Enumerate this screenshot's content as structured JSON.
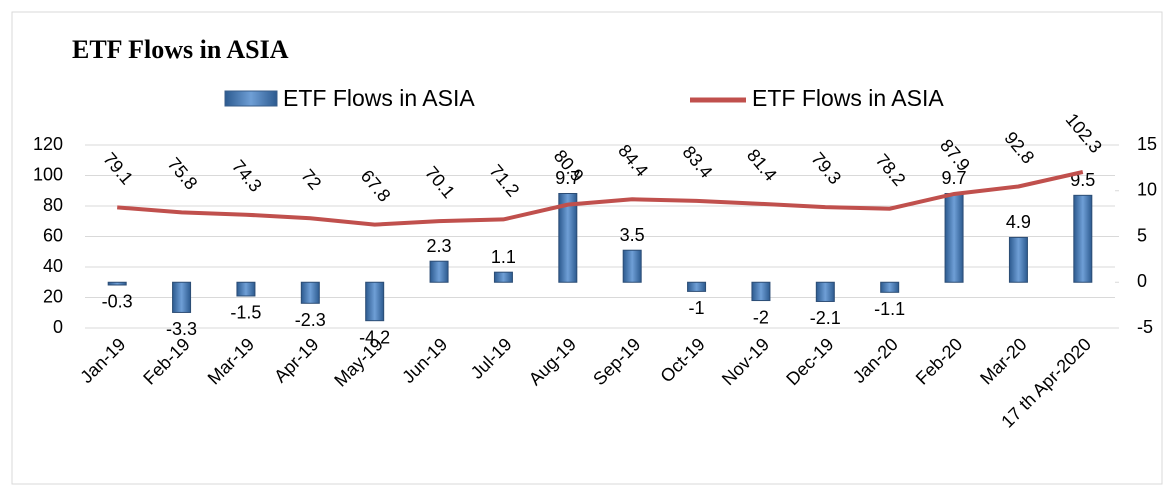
{
  "chart_data": {
    "type": "bar_line",
    "title": "ETF Flows in ASIA",
    "categories": [
      "Jan-19",
      "Feb-19",
      "Mar-19",
      "Apr-19",
      "May-19",
      "Jun-19",
      "Jul-19",
      "Aug-19",
      "Sep-19",
      "Oct-19",
      "Nov-19",
      "Dec-19",
      "Jan-20",
      "Feb-20",
      "Mar-20",
      "17 th Apr-2020"
    ],
    "series": [
      {
        "name": "ETF Flows in ASIA",
        "type": "bar",
        "axis": "y2",
        "color": "#4f81bd",
        "values": [
          -0.3,
          -3.3,
          -1.5,
          -2.3,
          -4.2,
          2.3,
          1.1,
          9.7,
          3.5,
          -1,
          -2,
          -2.1,
          -1.1,
          9.7,
          4.9,
          9.5
        ]
      },
      {
        "name": "ETF Flows in ASIA",
        "type": "line",
        "axis": "y",
        "color": "#c0504d",
        "values": [
          79.1,
          75.8,
          74.3,
          72,
          67.8,
          70.1,
          71.2,
          80.9,
          84.4,
          83.4,
          81.4,
          79.3,
          78.2,
          87.9,
          92.8,
          102.3
        ]
      }
    ],
    "ylim": [
      0,
      120
    ],
    "yticks": [
      0,
      20,
      40,
      60,
      80,
      100,
      120
    ],
    "y2lim": [
      -5,
      15
    ],
    "y2ticks": [
      -5,
      0,
      5,
      10,
      15
    ],
    "grid": true
  }
}
